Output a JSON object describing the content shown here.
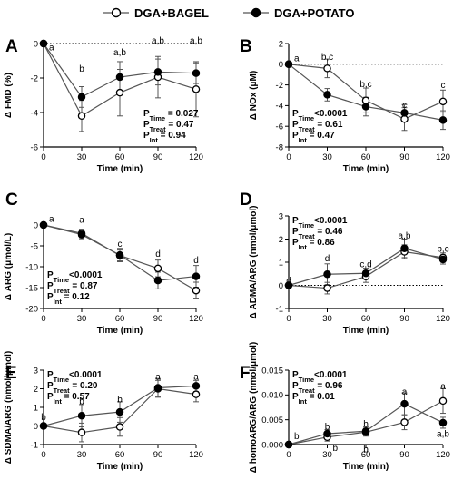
{
  "legend": {
    "series_a": "DGA+BAGEL",
    "series_b": "DGA+POTATO"
  },
  "colors": {
    "line": "#555555",
    "open_marker_fill": "#ffffff",
    "filled_marker": "#000000"
  },
  "chart_data": [
    {
      "panel": "A",
      "type": "line",
      "xlabel": "Time (min)",
      "ylabel": "Δ FMD (%)",
      "x": [
        0,
        30,
        60,
        90,
        120
      ],
      "ylim": [
        -6,
        0
      ],
      "yticks": [
        0,
        -2,
        -4,
        -6
      ],
      "series": [
        {
          "name": "DGA+BAGEL",
          "marker": "open",
          "values": [
            0,
            -4.2,
            -2.85,
            -1.95,
            -2.65
          ],
          "err": [
            0,
            0.9,
            1.35,
            1.2,
            1.6
          ]
        },
        {
          "name": "DGA+POTATO",
          "marker": "filled",
          "values": [
            0,
            -3.1,
            -1.95,
            -1.65,
            -1.72
          ],
          "err": [
            0,
            0.6,
            0.9,
            0.75,
            0.6
          ]
        }
      ],
      "labels": [
        {
          "x": 0,
          "y": -0.2,
          "text": "a",
          "pos": "right"
        },
        {
          "x": 30,
          "y": -1.45,
          "text": "b",
          "pos": "center"
        },
        {
          "x": 60,
          "y": -0.5,
          "text": "a,b",
          "pos": "center"
        },
        {
          "x": 90,
          "y": 0.18,
          "text": "a,b",
          "pos": "center"
        },
        {
          "x": 120,
          "y": 0.18,
          "text": "a,b",
          "pos": "center"
        }
      ],
      "stats": [
        {
          "p": "P",
          "sub": "Time",
          "rest": " = 0.027"
        },
        {
          "p": "P",
          "sub": "Treat",
          "rest": " = 0.47"
        },
        {
          "p": "P",
          "sub": "Int",
          "rest": " = 0.94"
        }
      ],
      "stats_pos": "bottom-right"
    },
    {
      "panel": "B",
      "type": "line",
      "xlabel": "Time (min)",
      "ylabel": "Δ NOx (μM)",
      "x": [
        0,
        30,
        60,
        90,
        120
      ],
      "ylim": [
        -8,
        2
      ],
      "yticks": [
        2,
        0,
        -2,
        -4,
        -6,
        -8
      ],
      "series": [
        {
          "name": "DGA+BAGEL",
          "marker": "open",
          "values": [
            0,
            -0.4,
            -3.5,
            -5.3,
            -3.6
          ],
          "err": [
            0,
            0.9,
            1.2,
            1.1,
            1.1
          ]
        },
        {
          "name": "DGA+POTATO",
          "marker": "filled",
          "values": [
            0,
            -2.95,
            -4.1,
            -4.7,
            -5.4
          ],
          "err": [
            0,
            0.6,
            0.9,
            0.8,
            0.9
          ]
        }
      ],
      "labels": [
        {
          "x": 0,
          "y": 0.6,
          "text": "a",
          "pos": "right"
        },
        {
          "x": 30,
          "y": 0.75,
          "text": "b,c",
          "pos": "center"
        },
        {
          "x": 60,
          "y": -1.9,
          "text": "b,c",
          "pos": "center"
        },
        {
          "x": 90,
          "y": -3.9,
          "text": "c",
          "pos": "center"
        },
        {
          "x": 120,
          "y": -2.0,
          "text": "c",
          "pos": "center"
        }
      ],
      "stats": [
        {
          "p": "P",
          "sub": "Time",
          "rest": "<0.0001"
        },
        {
          "p": "P",
          "sub": "Treat",
          "rest": " = 0.61"
        },
        {
          "p": "P",
          "sub": "Int",
          "rest": " = 0.47"
        }
      ],
      "stats_pos": "bottom-left"
    },
    {
      "panel": "C",
      "type": "line",
      "xlabel": "Time (min)",
      "ylabel": "Δ ARG (μmol/L)",
      "x": [
        0,
        30,
        60,
        90,
        120
      ],
      "ylim": [
        -20,
        0
      ],
      "yticks": [
        0,
        -5,
        -10,
        -15,
        -20
      ],
      "series": [
        {
          "name": "DGA+BAGEL",
          "marker": "open",
          "values": [
            0,
            -2.0,
            -7.3,
            -10.4,
            -15.7
          ],
          "err": [
            0,
            1.0,
            1.3,
            2.0,
            2.0
          ]
        },
        {
          "name": "DGA+POTATO",
          "marker": "filled",
          "values": [
            0,
            -2.3,
            -7.2,
            -13.3,
            -12.3
          ],
          "err": [
            0,
            1.0,
            1.6,
            2.0,
            2.6
          ]
        }
      ],
      "labels": [
        {
          "x": 0,
          "y": 1.5,
          "text": "a",
          "pos": "right"
        },
        {
          "x": 30,
          "y": 1.3,
          "text": "a",
          "pos": "center"
        },
        {
          "x": 60,
          "y": -4.5,
          "text": "c",
          "pos": "center"
        },
        {
          "x": 90,
          "y": -6.8,
          "text": "d",
          "pos": "center"
        },
        {
          "x": 120,
          "y": -8.4,
          "text": "d",
          "pos": "center"
        }
      ],
      "stats": [
        {
          "p": "P",
          "sub": "Time",
          "rest": "<0.0001"
        },
        {
          "p": "P",
          "sub": "Treat",
          "rest": " = 0.87"
        },
        {
          "p": "P",
          "sub": "Int",
          "rest": " = 0.12"
        }
      ],
      "stats_pos": "bottom-left"
    },
    {
      "panel": "D",
      "type": "line",
      "xlabel": "Time (min)",
      "ylabel": "Δ ADMA/ARG (nmol/μmol)",
      "x": [
        0,
        30,
        60,
        90,
        120
      ],
      "ylim": [
        -1,
        3
      ],
      "yticks": [
        3,
        2,
        1,
        0,
        -1
      ],
      "series": [
        {
          "name": "DGA+BAGEL",
          "marker": "open",
          "values": [
            0,
            -0.12,
            0.38,
            1.45,
            1.2
          ],
          "err": [
            0,
            0.25,
            0.25,
            0.3,
            0.2
          ]
        },
        {
          "name": "DGA+POTATO",
          "marker": "filled",
          "values": [
            0,
            0.48,
            0.52,
            1.6,
            1.12
          ],
          "err": [
            0,
            0.45,
            0.22,
            0.4,
            0.2
          ]
        }
      ],
      "labels": [
        {
          "x": 0,
          "y": 0.22,
          "text": "d",
          "pos": "center"
        },
        {
          "x": 30,
          "y": 1.18,
          "text": "d",
          "pos": "center"
        },
        {
          "x": 60,
          "y": 0.92,
          "text": "c,d",
          "pos": "center"
        },
        {
          "x": 90,
          "y": 2.15,
          "text": "a,b",
          "pos": "center"
        },
        {
          "x": 120,
          "y": 1.58,
          "text": "b,c",
          "pos": "center"
        }
      ],
      "stats": [
        {
          "p": "P",
          "sub": "Time",
          "rest": "<0.0001"
        },
        {
          "p": "P",
          "sub": "Treat",
          "rest": " = 0.46"
        },
        {
          "p": "P",
          "sub": "Int",
          "rest": " = 0.86"
        }
      ],
      "stats_pos": "top-left"
    },
    {
      "panel": "E",
      "type": "line",
      "xlabel": "Time (min)",
      "ylabel": "Δ SDMA/ARG (nmol/μmol)",
      "x": [
        0,
        30,
        60,
        90,
        120
      ],
      "ylim": [
        -1,
        3
      ],
      "yticks": [
        3,
        2,
        1,
        0,
        -1
      ],
      "series": [
        {
          "name": "DGA+BAGEL",
          "marker": "open",
          "values": [
            0,
            -0.35,
            -0.05,
            2.0,
            1.7
          ],
          "err": [
            0,
            0.5,
            0.5,
            0.45,
            0.4
          ]
        },
        {
          "name": "DGA+POTATO",
          "marker": "filled",
          "values": [
            0,
            0.55,
            0.75,
            2.05,
            2.15
          ],
          "err": [
            0,
            0.6,
            0.55,
            0.5,
            0.3
          ]
        }
      ],
      "labels": [
        {
          "x": 0,
          "y": 0.48,
          "text": "b",
          "pos": "center"
        },
        {
          "x": 30,
          "y": 1.35,
          "text": "b",
          "pos": "center"
        },
        {
          "x": 60,
          "y": 1.45,
          "text": "b",
          "pos": "center"
        },
        {
          "x": 90,
          "y": 2.65,
          "text": "a",
          "pos": "center"
        },
        {
          "x": 120,
          "y": 2.65,
          "text": "a",
          "pos": "center"
        }
      ],
      "stats": [
        {
          "p": "P",
          "sub": "Time",
          "rest": "<0.0001"
        },
        {
          "p": "P",
          "sub": "Treat",
          "rest": " = 0.20"
        },
        {
          "p": "P",
          "sub": "Int",
          "rest": " = 0.57"
        }
      ],
      "stats_pos": "top-left"
    },
    {
      "panel": "F",
      "type": "line",
      "xlabel": "Time (min)",
      "ylabel": "Δ homoARG/ARG (nmol/μmol)",
      "x": [
        0,
        30,
        60,
        90,
        120
      ],
      "ylim": [
        0,
        0.015
      ],
      "yticks": [
        0.015,
        0.01,
        0.005,
        0.0
      ],
      "ytick_labels": [
        "0.015",
        "0.010",
        "0.005",
        "0.000"
      ],
      "series": [
        {
          "name": "DGA+BAGEL",
          "marker": "open",
          "values": [
            0.0,
            0.0015,
            0.0025,
            0.0045,
            0.0088
          ],
          "err": [
            0,
            0.0008,
            0.0008,
            0.0015,
            0.0025
          ]
        },
        {
          "name": "DGA+POTATO",
          "marker": "filled",
          "values": [
            0.0,
            0.0022,
            0.0027,
            0.0082,
            0.0044
          ],
          "err": [
            0,
            0.0008,
            0.0009,
            0.0022,
            0.0011
          ]
        }
      ],
      "labels": [
        {
          "x": 0,
          "y": 0.0017,
          "text": "b",
          "pos": "right"
        },
        {
          "x": 30,
          "y": 0.0037,
          "text": "b",
          "pos": "center"
        },
        {
          "x": 30,
          "y": -0.0006,
          "text": "b",
          "pos": "right"
        },
        {
          "x": 60,
          "y": 0.0042,
          "text": "b",
          "pos": "center"
        },
        {
          "x": 60,
          "y": -0.0009,
          "text": "b",
          "pos": "center"
        },
        {
          "x": 90,
          "y": 0.0107,
          "text": "a",
          "pos": "center"
        },
        {
          "x": 120,
          "y": 0.0118,
          "text": "a",
          "pos": "center"
        },
        {
          "x": 120,
          "y": 0.0022,
          "text": "a,b",
          "pos": "center"
        }
      ],
      "stats": [
        {
          "p": "P",
          "sub": "Time",
          "rest": "<0.0001"
        },
        {
          "p": "P",
          "sub": "Treat",
          "rest": " = 0.96"
        },
        {
          "p": "P",
          "sub": "Int",
          "rest": " = 0.01"
        }
      ],
      "stats_pos": "top-left"
    }
  ]
}
